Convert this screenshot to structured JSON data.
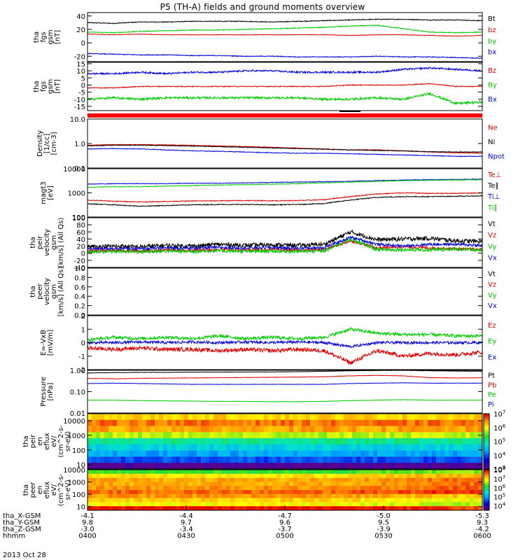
{
  "title": "P5 (TH-A) fields and ground moments overview",
  "date_label": "2013 Oct 28",
  "chart_data": [
    {
      "type": "line",
      "ylabel_lines": [
        "tha",
        "fgs",
        "gsm",
        "[nT]"
      ],
      "ylim": [
        -28,
        45
      ],
      "yticks": [
        -20,
        0,
        20,
        40
      ],
      "yticklabels": [
        "-20",
        "0",
        "20",
        "40"
      ],
      "legend": [
        {
          "name": "Bt",
          "color": "#000000"
        },
        {
          "name": "bz",
          "color": "#e00000"
        },
        {
          "name": "by",
          "color": "#00cc00"
        },
        {
          "name": "bx",
          "color": "#0000dd"
        }
      ],
      "series": [
        {
          "name": "Bt",
          "color": "#000000",
          "noise": 0.6,
          "values": [
            30,
            29,
            31,
            31,
            32,
            32,
            32,
            31,
            32,
            33,
            34,
            35,
            35,
            34,
            34,
            33
          ]
        },
        {
          "name": "bz",
          "color": "#e00000",
          "noise": 0.4,
          "values": [
            13,
            12,
            13,
            12,
            12,
            12,
            12,
            12,
            12,
            12,
            11,
            12,
            12,
            11,
            10,
            11
          ]
        },
        {
          "name": "by",
          "color": "#00cc00",
          "noise": 0.6,
          "values": [
            16,
            15,
            17,
            18,
            19,
            19,
            20,
            21,
            22,
            23,
            25,
            26,
            21,
            16,
            15,
            16
          ]
        },
        {
          "name": "bx",
          "color": "#0000dd",
          "noise": 0.6,
          "values": [
            -16,
            -17,
            -18,
            -18,
            -19,
            -19,
            -20,
            -20,
            -21,
            -21,
            -21,
            -20,
            -21,
            -21,
            -22,
            -23
          ]
        }
      ]
    },
    {
      "type": "line",
      "ylabel_lines": [
        "tha",
        "fgs",
        "gsm",
        "[nT]"
      ],
      "ylim": [
        -18,
        16
      ],
      "yticks": [
        -15,
        -10,
        -5,
        0,
        5,
        10,
        15
      ],
      "yticklabels": [
        "-15",
        "-10",
        "-5",
        "0",
        "5",
        "10",
        "15"
      ],
      "legend": [
        {
          "name": "Bz",
          "color": "#e00000"
        },
        {
          "name": "By",
          "color": "#00cc00"
        },
        {
          "name": "Bx",
          "color": "#0000dd"
        }
      ],
      "series": [
        {
          "name": "Bz",
          "color": "#e00000",
          "noise": 0.3,
          "values": [
            -2,
            -2,
            -1,
            -1,
            -1,
            -1,
            -1,
            -1,
            -1,
            -1,
            0,
            0,
            0,
            1,
            -1,
            -1
          ]
        },
        {
          "name": "By",
          "color": "#00cc00",
          "noise": 0.8,
          "values": [
            -10,
            -9,
            -10,
            -9,
            -9,
            -9,
            -9,
            -9,
            -9,
            -10,
            -10,
            -9,
            -10,
            -6,
            -13,
            -12
          ]
        },
        {
          "name": "Bx",
          "color": "#0000dd",
          "noise": 0.6,
          "values": [
            8,
            8,
            9,
            8,
            9,
            9,
            10,
            10,
            9,
            9,
            9,
            9,
            11,
            12,
            11,
            10
          ]
        }
      ]
    },
    {
      "type": "log-line",
      "ylabel_lines": [
        "Density",
        "[1/cc]",
        "[cm-3]"
      ],
      "ylim": [
        0.1,
        10
      ],
      "yticks": [
        0.1,
        1,
        10
      ],
      "yticklabels": [
        "0.1",
        "1.0",
        "10.0"
      ],
      "legend": [
        {
          "name": "Ne",
          "color": "#e00000"
        },
        {
          "name": "Ni",
          "color": "#000000"
        },
        {
          "name": "Npot",
          "color": "#0000dd"
        }
      ],
      "series": [
        {
          "name": "Ne",
          "color": "#e00000",
          "noise": 0.015,
          "values": [
            0.85,
            0.9,
            0.9,
            0.88,
            0.85,
            0.8,
            0.75,
            0.7,
            0.65,
            0.6,
            0.55,
            0.55,
            0.5,
            0.45,
            0.42,
            0.4
          ]
        },
        {
          "name": "Ni",
          "color": "#000000",
          "noise": 0.015,
          "values": [
            0.8,
            0.85,
            0.85,
            0.82,
            0.78,
            0.74,
            0.7,
            0.66,
            0.62,
            0.58,
            0.55,
            0.52,
            0.5,
            0.46,
            0.45,
            0.45
          ]
        },
        {
          "name": "Npot",
          "color": "#0000dd",
          "noise": 0.015,
          "values": [
            0.6,
            0.62,
            0.6,
            0.55,
            0.5,
            0.48,
            0.45,
            0.42,
            0.4,
            0.4,
            0.38,
            0.36,
            0.34,
            0.32,
            0.3,
            0.3
          ]
        }
      ]
    },
    {
      "type": "log-line",
      "ylabel_lines": [
        "magt3",
        "[eV]"
      ],
      "ylim": [
        100,
        10000
      ],
      "yticks": [
        100,
        1000,
        10000
      ],
      "yticklabels": [
        "100",
        "1000",
        "10000"
      ],
      "legend": [
        {
          "name": "Te⊥",
          "color": "#e00000"
        },
        {
          "name": "Te∥",
          "color": "#000000"
        },
        {
          "name": "Ti⊥",
          "color": "#0000dd"
        },
        {
          "name": "Ti∥",
          "color": "#00cc00"
        }
      ],
      "series": [
        {
          "name": "Te⊥",
          "color": "#e00000",
          "noise": 0.02,
          "values": [
            500,
            450,
            420,
            440,
            460,
            470,
            480,
            470,
            480,
            520,
            700,
            900,
            1000,
            950,
            950,
            1000
          ]
        },
        {
          "name": "Te∥",
          "color": "#000000",
          "noise": 0.02,
          "values": [
            350,
            320,
            280,
            300,
            320,
            330,
            330,
            320,
            330,
            360,
            500,
            650,
            700,
            700,
            720,
            750
          ]
        },
        {
          "name": "Ti⊥",
          "color": "#0000dd",
          "noise": 0.015,
          "values": [
            2300,
            2400,
            2400,
            2400,
            2500,
            2500,
            2600,
            2700,
            2800,
            2900,
            3000,
            3200,
            3400,
            3500,
            3600,
            3700
          ]
        },
        {
          "name": "Ti∥",
          "color": "#00cc00",
          "noise": 0.015,
          "values": [
            1700,
            1800,
            1800,
            1900,
            2000,
            2100,
            2200,
            2300,
            2400,
            2600,
            2800,
            3000,
            3200,
            3300,
            3400,
            3500
          ]
        }
      ]
    },
    {
      "type": "line",
      "ylabel_lines": [
        "tha",
        "peir",
        "velocity",
        "gsm",
        "[km/s] (All Qs)"
      ],
      "ylim": [
        -40,
        100
      ],
      "yticks": [
        -40,
        -20,
        0,
        20,
        40,
        60,
        80,
        100
      ],
      "yticklabels": [
        "-40",
        "-20",
        "0",
        "20",
        "40",
        "60",
        "80",
        "100"
      ],
      "legend": [
        {
          "name": "Vt",
          "color": "#000000"
        },
        {
          "name": "Vz",
          "color": "#e00000"
        },
        {
          "name": "Vy",
          "color": "#00cc00"
        },
        {
          "name": "Vx",
          "color": "#0000dd"
        }
      ],
      "series": [
        {
          "name": "Vt",
          "color": "#000000",
          "noise": 6,
          "values": [
            18,
            20,
            18,
            22,
            20,
            25,
            22,
            24,
            22,
            25,
            60,
            38,
            40,
            42,
            35,
            33
          ]
        },
        {
          "name": "Vz",
          "color": "#e00000",
          "noise": 4,
          "values": [
            6,
            8,
            6,
            9,
            8,
            10,
            9,
            10,
            8,
            10,
            35,
            15,
            18,
            15,
            12,
            10
          ]
        },
        {
          "name": "Vy",
          "color": "#00cc00",
          "noise": 5,
          "values": [
            3,
            5,
            4,
            6,
            5,
            7,
            5,
            6,
            5,
            6,
            40,
            10,
            10,
            9,
            12,
            8
          ]
        },
        {
          "name": "Vx",
          "color": "#0000dd",
          "noise": 4,
          "values": [
            12,
            14,
            12,
            15,
            14,
            16,
            15,
            16,
            14,
            16,
            45,
            25,
            20,
            25,
            25,
            22
          ]
        }
      ]
    },
    {
      "type": "line",
      "ylabel_lines": [
        "tha",
        "peer",
        "velocity",
        "gsm",
        "[km/s] (All Qs)"
      ],
      "ylim": [
        0,
        1
      ],
      "yticks": [
        0,
        0.2,
        0.4,
        0.6,
        0.8,
        1.0
      ],
      "yticklabels": [
        "0.0",
        "0.2",
        "0.4",
        "0.6",
        "0.8",
        "1.0"
      ],
      "legend": [
        {
          "name": "Vt",
          "color": "#000000"
        },
        {
          "name": "Vz",
          "color": "#e00000"
        },
        {
          "name": "Vy",
          "color": "#00cc00"
        },
        {
          "name": "Vx",
          "color": "#0000dd"
        }
      ],
      "series": []
    },
    {
      "type": "line",
      "ylabel_lines": [
        "E=-VxB",
        "[mV/m]"
      ],
      "ylim": [
        -2,
        2
      ],
      "yticks": [
        -2,
        -1,
        0,
        1,
        2
      ],
      "yticklabels": [
        "-2",
        "-1",
        "0",
        "1",
        "2"
      ],
      "legend": [
        {
          "name": "Ez",
          "color": "#e00000"
        },
        {
          "name": "Ey",
          "color": "#00cc00"
        },
        {
          "name": "Ex",
          "color": "#0000dd"
        }
      ],
      "series": [
        {
          "name": "Ez",
          "color": "#e00000",
          "noise": 0.15,
          "values": [
            -0.4,
            -0.5,
            -0.4,
            -0.5,
            -0.5,
            -0.6,
            -0.5,
            -0.6,
            -0.5,
            -0.6,
            -1.5,
            -0.6,
            -1.0,
            -0.8,
            -0.9,
            -0.7
          ]
        },
        {
          "name": "Ey",
          "color": "#00cc00",
          "noise": 0.12,
          "values": [
            0.2,
            0.4,
            0.3,
            0.4,
            0.3,
            0.5,
            0.3,
            0.4,
            0.3,
            0.4,
            1.0,
            0.7,
            0.6,
            0.6,
            0.5,
            0.5
          ]
        },
        {
          "name": "Ex",
          "color": "#0000dd",
          "noise": 0.1,
          "values": [
            0.0,
            0.0,
            0.05,
            0.0,
            0.05,
            0.0,
            0.05,
            0.0,
            0.05,
            0.0,
            -0.3,
            0.0,
            0.0,
            0.0,
            0.0,
            0.0
          ]
        }
      ]
    },
    {
      "type": "log-line",
      "ylabel_lines": [
        "Pressure",
        "[nPa]"
      ],
      "ylim": [
        0.01,
        1
      ],
      "yticks": [
        0.01,
        0.1,
        1
      ],
      "yticklabels": [
        "0.01",
        "0.10",
        "1.00"
      ],
      "legend": [
        {
          "name": "Pt",
          "color": "#000000"
        },
        {
          "name": "Pb",
          "color": "#e00000"
        },
        {
          "name": "Pe",
          "color": "#00cc00"
        },
        {
          "name": "Pi",
          "color": "#0000dd"
        }
      ],
      "series": [
        {
          "name": "Pt",
          "color": "#000000",
          "noise": 0.01,
          "values": [
            0.75,
            0.78,
            0.8,
            0.8,
            0.82,
            0.82,
            0.83,
            0.84,
            0.86,
            0.9,
            0.95,
            0.98,
            1.0,
            0.95,
            0.92,
            0.9
          ]
        },
        {
          "name": "Pb",
          "color": "#e00000",
          "noise": 0.01,
          "values": [
            0.42,
            0.4,
            0.42,
            0.43,
            0.44,
            0.45,
            0.46,
            0.47,
            0.48,
            0.5,
            0.55,
            0.58,
            0.55,
            0.45,
            0.44,
            0.45
          ]
        },
        {
          "name": "Pe",
          "color": "#00cc00",
          "noise": 0.01,
          "values": [
            0.04,
            0.04,
            0.038,
            0.037,
            0.036,
            0.035,
            0.035,
            0.034,
            0.034,
            0.035,
            0.038,
            0.04,
            0.042,
            0.04,
            0.04,
            0.04
          ]
        },
        {
          "name": "Pi",
          "color": "#0000dd",
          "noise": 0.01,
          "values": [
            0.24,
            0.25,
            0.24,
            0.23,
            0.22,
            0.22,
            0.22,
            0.22,
            0.22,
            0.22,
            0.24,
            0.25,
            0.26,
            0.25,
            0.25,
            0.25
          ]
        }
      ]
    },
    {
      "type": "heatmap",
      "ylabel_lines": [
        "tha",
        "peir",
        "en",
        "eflux",
        "eV/",
        "(cm^2-s-",
        "sr-eV)"
      ],
      "ylim": [
        5,
        30000
      ],
      "yticks": [
        10,
        100,
        1000,
        10000
      ],
      "yticklabels": [
        "10",
        "100",
        "1000",
        "10000"
      ],
      "colorbar_ticks": [
        "10^3",
        "10^4",
        "10^5",
        "10^6",
        "10^7"
      ],
      "colorbar_log_range": [
        3,
        7
      ],
      "colorbar_tick_values": [
        3,
        4,
        5,
        6,
        7
      ],
      "rows_log10_eflux": [
        6.2,
        6.6,
        6.4,
        5.8,
        5.0,
        4.6,
        4.3,
        3.9,
        3.0
      ]
    },
    {
      "type": "heatmap",
      "ylabel_lines": [
        "tha",
        "peer",
        "en",
        "eflux",
        "eV/",
        "(cm^2-s-",
        "sr-eV)"
      ],
      "ylim": [
        5,
        10000
      ],
      "yticks": [
        10,
        100,
        1000,
        10000
      ],
      "yticklabels": [
        "10",
        "100",
        "1000",
        "10000"
      ],
      "colorbar_ticks": [
        "10^4",
        "10^5",
        "10^6",
        "10^7",
        "10^8"
      ],
      "colorbar_log_range": [
        3.5,
        8
      ],
      "colorbar_tick_values": [
        4,
        5,
        6,
        7,
        8
      ],
      "rows_log10_eflux": [
        6.2,
        7.0,
        7.3,
        7.3,
        7.4,
        7.6,
        7.4,
        7.1,
        6.9,
        8.0
      ]
    }
  ],
  "xaxis": {
    "labels": [
      "tha_X-GSM",
      "tha_Y-GSM",
      "tha_Z-GSM",
      "hhmm"
    ],
    "ticks": [
      {
        "X": "-4.1",
        "Y": "9.8",
        "Z": "-3.0",
        "hhmm": "0400"
      },
      {
        "X": "-4.4",
        "Y": "9.7",
        "Z": "-3.4",
        "hhmm": "0430"
      },
      {
        "X": "-4.7",
        "Y": "9.6",
        "Z": "-3.7",
        "hhmm": "0500"
      },
      {
        "X": "-5.0",
        "Y": "9.5",
        "Z": "-3.9",
        "hhmm": "0530"
      },
      {
        "X": "-5.3",
        "Y": "9.3",
        "Z": "-4.2",
        "hhmm": "0600"
      }
    ]
  }
}
